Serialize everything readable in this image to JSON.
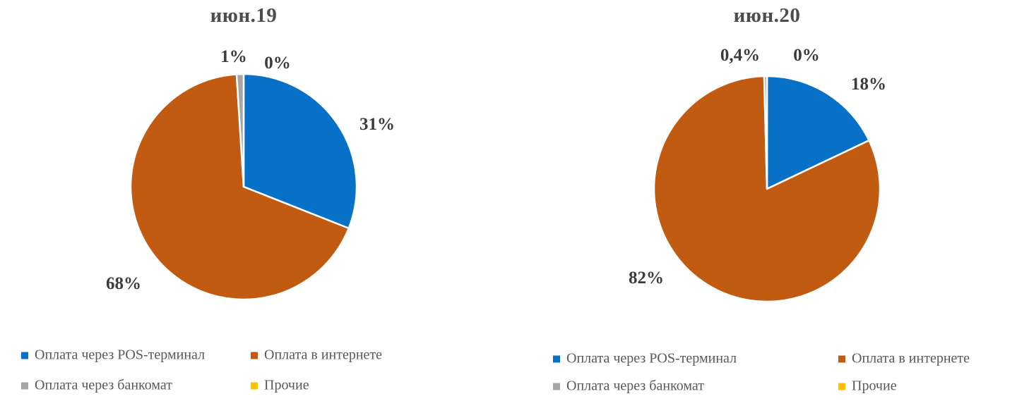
{
  "style": {
    "background": "#ffffff",
    "title_color": "#4d4d4d",
    "label_color": "#3b3b3b",
    "legend_text_color": "#595959",
    "slice_border_color": "#ffffff"
  },
  "chart_data": [
    {
      "type": "pie",
      "title": "июн.19",
      "categories": [
        "Оплата через POS-терминал",
        "Оплата в интернете",
        "Оплата через банкомат",
        "Прочие"
      ],
      "values": [
        31,
        68,
        1,
        0
      ],
      "labels": [
        "31%",
        "68%",
        "1%",
        "0%"
      ],
      "colors": [
        "#0671c7",
        "#c25b12",
        "#a6a6a6",
        "#ffc000"
      ],
      "start_angle_deg": 0,
      "direction": "clockwise",
      "legend_position": "bottom",
      "grid": false
    },
    {
      "type": "pie",
      "title": "июн.20",
      "categories": [
        "Оплата через POS-терминал",
        "Оплата в интернете",
        "Оплата через банкомат",
        "Прочие"
      ],
      "values": [
        18,
        82,
        0.4,
        0
      ],
      "labels": [
        "18%",
        "82%",
        "0,4%",
        "0%"
      ],
      "colors": [
        "#0671c7",
        "#c25b12",
        "#a6a6a6",
        "#ffc000"
      ],
      "start_angle_deg": 0,
      "direction": "clockwise",
      "legend_position": "bottom",
      "grid": false
    }
  ]
}
